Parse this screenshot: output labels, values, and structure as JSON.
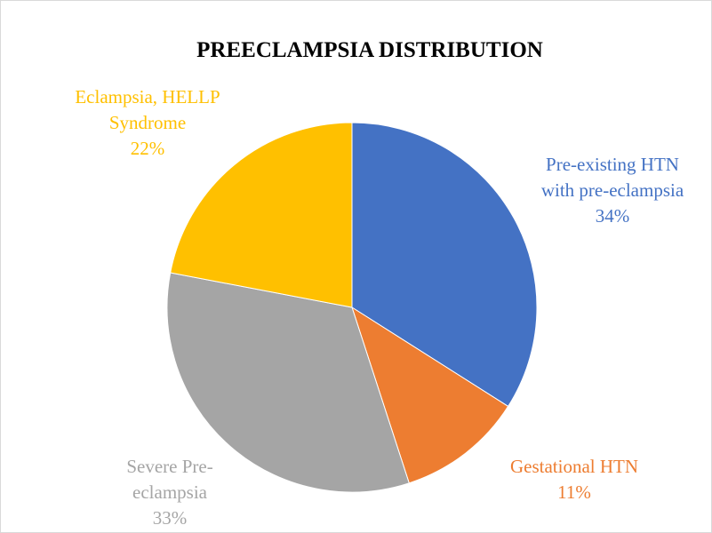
{
  "chart_data": {
    "type": "pie",
    "title": "PREECLAMPSIA DISTRIBUTION",
    "categories": [
      "Pre-existing HTN with pre-eclampsia",
      "Gestational HTN",
      "Severe Pre-eclampsia",
      "Eclampsia, HELLP Syndrome"
    ],
    "values": [
      34,
      11,
      33,
      22
    ],
    "value_labels": [
      "34%",
      "11%",
      "33%",
      "22%"
    ],
    "colors": [
      "#4472c4",
      "#ed7d31",
      "#a5a5a5",
      "#ffc000"
    ]
  }
}
